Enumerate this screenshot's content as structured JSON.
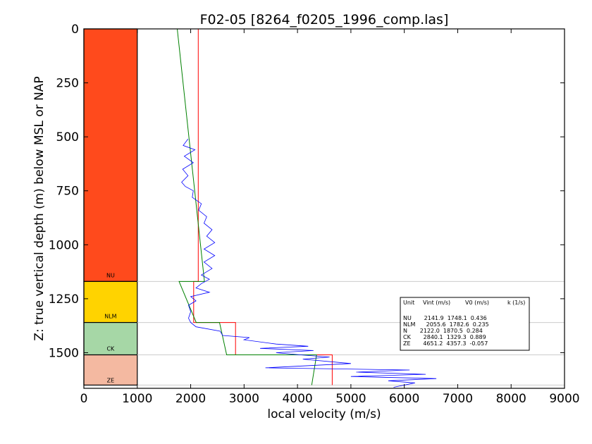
{
  "chart_data": {
    "type": "line",
    "title": "F02-05 [8264_f0205_1996_comp.las]",
    "xlabel": "local velocity (m/s)",
    "ylabel": "Z: true vertical depth (m) below MSL or NAP",
    "xlim": [
      0,
      9000
    ],
    "ylim": [
      1665,
      0
    ],
    "y_inverted": true,
    "xticks": [
      0,
      1000,
      2000,
      3000,
      4000,
      5000,
      6000,
      7000,
      8000,
      9000
    ],
    "yticks": [
      0,
      250,
      500,
      750,
      1000,
      1250,
      1500
    ],
    "grid": false,
    "units": [
      {
        "name": "NU",
        "top": 0,
        "base": 1170,
        "color": "#ff4a1c",
        "label_depth": 1150
      },
      {
        "name": "NLM",
        "top": 1170,
        "base": 1360,
        "color": "#ffd300",
        "label_depth": 1340
      },
      {
        "name": "CK",
        "top": 1360,
        "base": 1510,
        "color": "#a6d7a6",
        "label_depth": 1490
      },
      {
        "name": "ZE",
        "top": 1510,
        "base": 1650,
        "color": "#f4b9a1",
        "label_depth": 1638
      }
    ],
    "boundaries": [
      1170,
      1360,
      1510,
      1650
    ],
    "series": [
      {
        "color": "#ff0000",
        "points": [
          [
            2142,
            0
          ],
          [
            2142,
            1170
          ],
          [
            2056,
            1170
          ],
          [
            2056,
            1360
          ],
          [
            2840,
            1360
          ],
          [
            2840,
            1510
          ],
          [
            4651,
            1510
          ],
          [
            4651,
            1650
          ]
        ]
      },
      {
        "color": "#008000",
        "points": [
          [
            1748,
            0
          ],
          [
            2258,
            1170
          ],
          [
            1783,
            1170
          ],
          [
            2103,
            1360
          ],
          [
            2540,
            1360
          ],
          [
            2673,
            1510
          ],
          [
            4357,
            1510
          ],
          [
            4266,
            1650
          ]
        ]
      },
      {
        "color": "#0000ff",
        "points": [
          [
            1950,
            510
          ],
          [
            1860,
            540
          ],
          [
            2080,
            560
          ],
          [
            1880,
            590
          ],
          [
            2050,
            620
          ],
          [
            1850,
            650
          ],
          [
            1950,
            680
          ],
          [
            1830,
            710
          ],
          [
            1900,
            730
          ],
          [
            2050,
            750
          ],
          [
            2030,
            780
          ],
          [
            2200,
            810
          ],
          [
            2150,
            840
          ],
          [
            2300,
            870
          ],
          [
            2250,
            900
          ],
          [
            2400,
            930
          ],
          [
            2300,
            960
          ],
          [
            2450,
            990
          ],
          [
            2250,
            1020
          ],
          [
            2450,
            1050
          ],
          [
            2250,
            1080
          ],
          [
            2400,
            1110
          ],
          [
            2200,
            1140
          ],
          [
            2350,
            1160
          ],
          [
            2200,
            1180
          ],
          [
            2100,
            1200
          ],
          [
            2350,
            1220
          ],
          [
            2000,
            1240
          ],
          [
            2100,
            1260
          ],
          [
            1960,
            1280
          ],
          [
            2000,
            1310
          ],
          [
            1960,
            1340
          ],
          [
            2000,
            1360
          ],
          [
            2100,
            1380
          ],
          [
            2550,
            1400
          ],
          [
            2600,
            1420
          ],
          [
            3100,
            1430
          ],
          [
            3000,
            1440
          ],
          [
            3600,
            1460
          ],
          [
            4200,
            1470
          ],
          [
            3300,
            1480
          ],
          [
            4300,
            1490
          ],
          [
            3600,
            1500
          ],
          [
            4050,
            1510
          ],
          [
            4600,
            1520
          ],
          [
            4100,
            1530
          ],
          [
            5000,
            1550
          ],
          [
            3400,
            1570
          ],
          [
            6100,
            1580
          ],
          [
            5100,
            1590
          ],
          [
            6400,
            1600
          ],
          [
            5000,
            1610
          ],
          [
            6600,
            1620
          ],
          [
            5700,
            1630
          ],
          [
            6200,
            1640
          ],
          [
            5800,
            1660
          ]
        ]
      }
    ],
    "legend": {
      "position": "right-center",
      "header": [
        "Unit",
        "Vint (m/s)",
        "V0 (m/s)",
        "k (1/s)"
      ],
      "rows": [
        "NU       2141.9  1748.1  0.436",
        "NLM      2055.6  1782.6  0.235",
        "N       2122.0  1870.5  0.284",
        "CK       2840.1  1329.3  0.889",
        "ZE       4651.2  4357.3  -0.057"
      ]
    }
  }
}
